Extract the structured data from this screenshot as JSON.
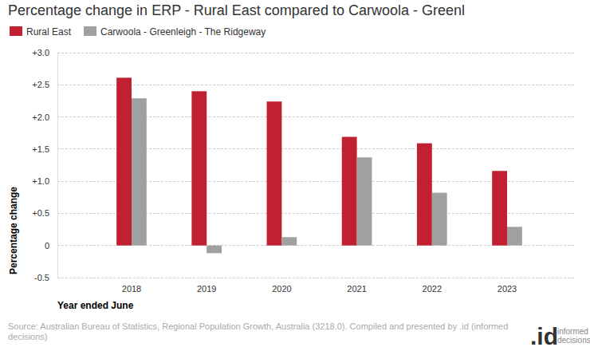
{
  "chart_data": {
    "type": "bar",
    "title": "Percentage change in ERP - Rural East compared to Carwoola - Greenl",
    "x_label": "Year ended June",
    "y_label": "Percentage change",
    "categories": [
      "2018",
      "2019",
      "2020",
      "2021",
      "2022",
      "2023"
    ],
    "series": [
      {
        "name": "Rural East",
        "color": "#c0202f",
        "values": [
          2.61,
          2.4,
          2.24,
          1.69,
          1.59,
          1.16
        ]
      },
      {
        "name": "Carwoola - Greenleigh - The Ridgeway",
        "color": "#a0a0a0",
        "values": [
          2.29,
          -0.12,
          0.13,
          1.37,
          0.82,
          0.29
        ]
      }
    ],
    "ylim": [
      -0.5,
      3.0
    ],
    "yticks": [
      -0.5,
      0,
      {
        "value": 0.5,
        "label": "+0.5"
      },
      {
        "value": 1.0,
        "label": "+1.0"
      },
      {
        "value": 1.5,
        "label": "+1.5"
      },
      {
        "value": 2.0,
        "label": "+2.0"
      },
      {
        "value": 2.5,
        "label": "+2.5"
      },
      {
        "value": 3.0,
        "label": "+3.0"
      }
    ],
    "grid": true,
    "legend": "top-left",
    "source": [
      "Source: Australian Bureau of Statistics, Regional Population Growth, Australia (3218.0). Compiled and presented by .id (informed",
      "decisions)"
    ],
    "logo": [
      ".id",
      "informed",
      "decisions"
    ]
  }
}
